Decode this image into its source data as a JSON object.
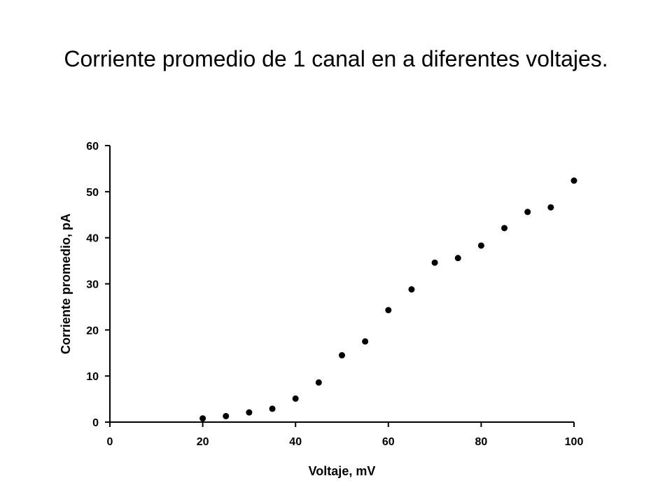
{
  "chart_data": {
    "type": "scatter",
    "title": "Corriente promedio de 1 canal en a diferentes voltajes.",
    "xlabel": "Voltaje, mV",
    "ylabel": "Corriente promedio, pA",
    "xlim": [
      0,
      100
    ],
    "ylim": [
      0,
      60
    ],
    "xticks": [
      0,
      20,
      40,
      60,
      80,
      100
    ],
    "yticks": [
      0,
      10,
      20,
      30,
      40,
      50,
      60
    ],
    "grid": false,
    "legend": "none",
    "marker_color": "#000000",
    "series": [
      {
        "x": [
          20,
          25,
          30,
          35,
          40,
          45,
          50,
          55,
          60,
          65,
          70,
          75,
          80,
          85,
          90,
          95,
          100
        ],
        "y": [
          0.8,
          1.3,
          2.1,
          2.9,
          5.1,
          8.6,
          14.5,
          17.5,
          24.3,
          28.8,
          34.6,
          35.6,
          38.3,
          42.1,
          45.6,
          46.6,
          52.4
        ]
      }
    ]
  }
}
